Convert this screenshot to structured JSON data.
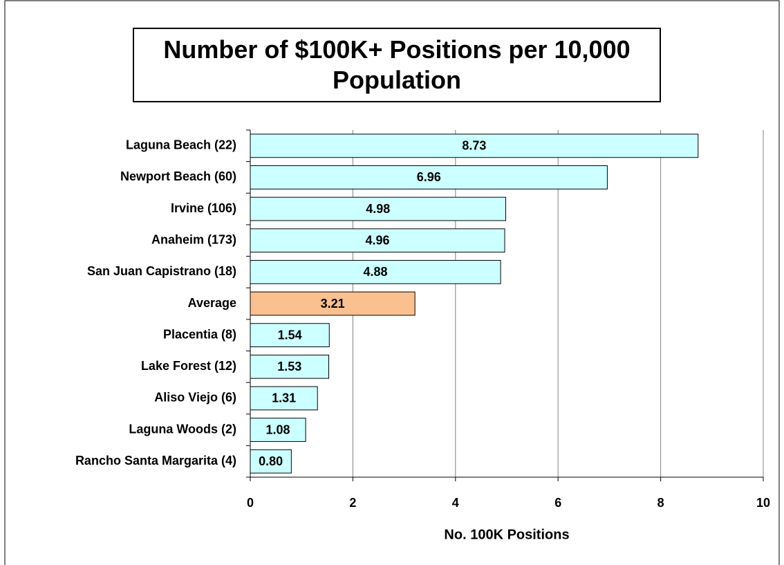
{
  "chart_data": {
    "type": "hbar",
    "title": "Number of $100K+ Positions per 10,000 Population",
    "xlabel": "No. 100K Positions",
    "categories": [
      "Laguna Beach (22)",
      "Newport Beach (60)",
      "Irvine (106)",
      "Anaheim (173)",
      "San Juan Capistrano (18)",
      "Average",
      "Placentia (8)",
      "Lake Forest (12)",
      "Aliso Viejo (6)",
      "Laguna Woods (2)",
      "Rancho Santa Margarita (4)"
    ],
    "values": [
      8.73,
      6.96,
      4.98,
      4.96,
      4.88,
      3.21,
      1.54,
      1.53,
      1.31,
      1.08,
      0.8
    ],
    "value_labels": [
      "8.73",
      "6.96",
      "4.98",
      "4.96",
      "4.88",
      "3.21",
      "1.54",
      "1.53",
      "1.31",
      "1.08",
      "0.80"
    ],
    "colors": [
      "#ccffff",
      "#ccffff",
      "#ccffff",
      "#ccffff",
      "#ccffff",
      "#fac090",
      "#ccffff",
      "#ccffff",
      "#ccffff",
      "#ccffff",
      "#ccffff"
    ],
    "xlim": [
      0,
      10
    ],
    "xticks": [
      0,
      2,
      4,
      6,
      8,
      10
    ],
    "grid": true
  }
}
